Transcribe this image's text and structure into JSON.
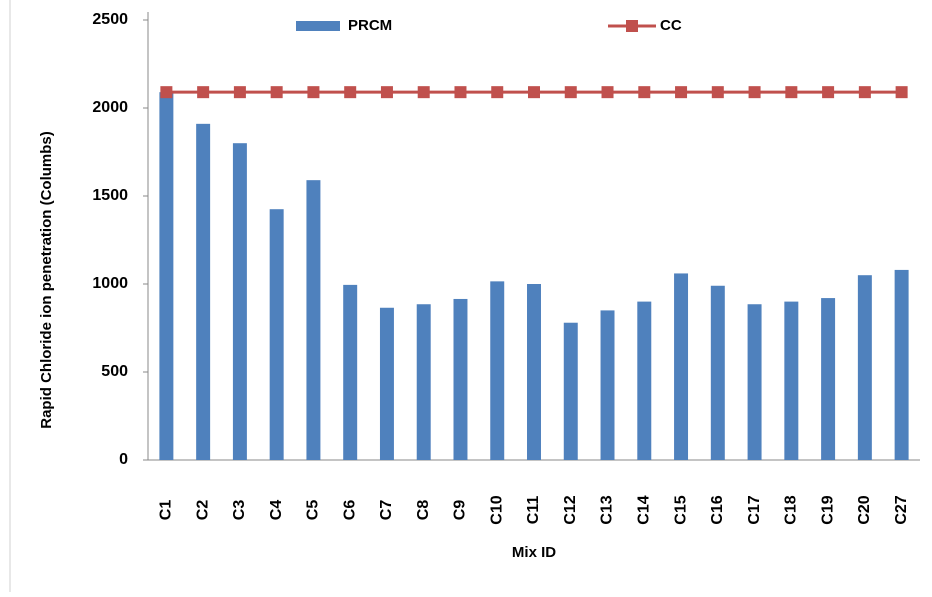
{
  "chart_data": {
    "type": "bar",
    "x_label": "Mix ID",
    "y_label": "Rapid Chloride ion penetration (Columbs)",
    "categories": [
      "C1",
      "C2",
      "C3",
      "C4",
      "C5",
      "C6",
      "C7",
      "C8",
      "C9",
      "C10",
      "C11",
      "C12",
      "C13",
      "C14",
      "C15",
      "C16",
      "C17",
      "C18",
      "C19",
      "C20",
      "C27"
    ],
    "series": [
      {
        "name": "PRCM",
        "color": "#4f81bd",
        "type": "bar",
        "values": [
          2090,
          1910,
          1800,
          1425,
          1590,
          995,
          865,
          885,
          915,
          1015,
          1000,
          780,
          850,
          900,
          1060,
          990,
          885,
          900,
          920,
          1050,
          1080
        ]
      },
      {
        "name": "CC",
        "color": "#c0504d",
        "type": "line",
        "values": [
          2090,
          2090,
          2090,
          2090,
          2090,
          2090,
          2090,
          2090,
          2090,
          2090,
          2090,
          2090,
          2090,
          2090,
          2090,
          2090,
          2090,
          2090,
          2090,
          2090,
          2090
        ]
      }
    ],
    "ylim": [
      0,
      2500
    ],
    "yticks": [
      0,
      500,
      1000,
      1500,
      2000,
      2500
    ],
    "grid": false
  }
}
